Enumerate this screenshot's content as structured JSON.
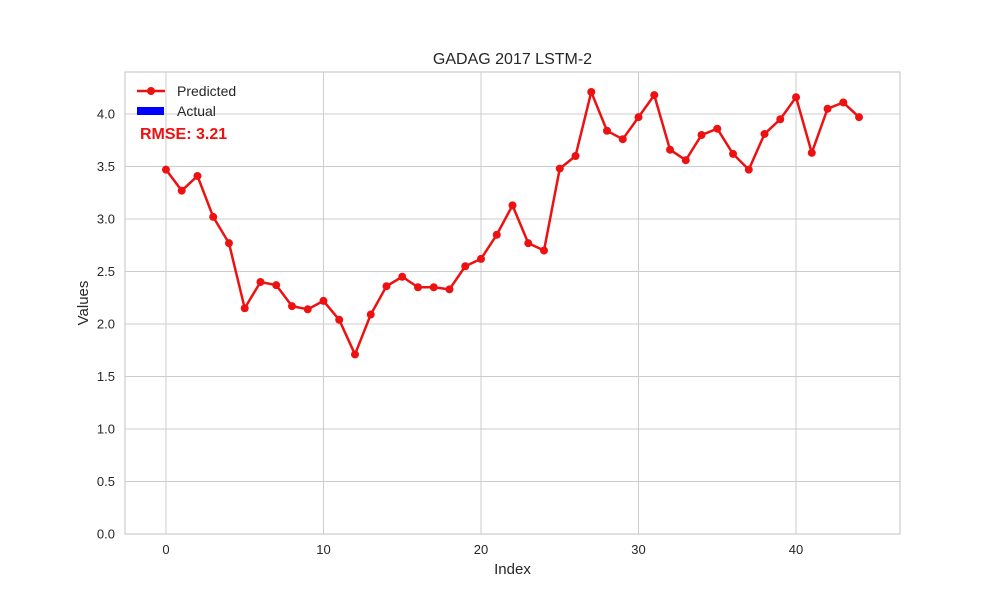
{
  "chart_data": {
    "type": "line",
    "title": "GADAG 2017 LSTM-2",
    "xlabel": "Index",
    "ylabel": "Values",
    "xlim": [
      -2.6,
      46.6
    ],
    "ylim": [
      0,
      4.4
    ],
    "xticks": [
      0,
      10,
      20,
      30,
      40
    ],
    "yticks": [
      0.0,
      0.5,
      1.0,
      1.5,
      2.0,
      2.5,
      3.0,
      3.5,
      4.0
    ],
    "ytick_labels": [
      "0.0",
      "0.5",
      "1.0",
      "1.5",
      "2.0",
      "2.5",
      "3.0",
      "3.5",
      "4.0"
    ],
    "grid": true,
    "legend_position": "top-left",
    "series": [
      {
        "name": "Predicted",
        "color": "#ee1111",
        "marker": "circle",
        "x": [
          0,
          1,
          2,
          3,
          4,
          5,
          6,
          7,
          8,
          9,
          10,
          11,
          12,
          13,
          14,
          15,
          16,
          17,
          18,
          19,
          20,
          21,
          22,
          23,
          24,
          25,
          26,
          27,
          28,
          29,
          30,
          31,
          32,
          33,
          34,
          35,
          36,
          37,
          38,
          39,
          40,
          41,
          42,
          43,
          44
        ],
        "values": [
          3.47,
          3.27,
          3.41,
          3.02,
          2.77,
          2.15,
          2.4,
          2.37,
          2.17,
          2.14,
          2.22,
          2.04,
          1.71,
          2.09,
          2.36,
          2.45,
          2.35,
          2.35,
          2.33,
          2.55,
          2.62,
          2.85,
          3.13,
          2.77,
          2.7,
          3.48,
          3.6,
          4.21,
          3.84,
          3.76,
          3.97,
          4.18,
          3.66,
          3.56,
          3.8,
          3.86,
          3.62,
          3.47,
          3.81,
          3.95,
          4.16,
          3.63,
          4.05,
          4.11,
          3.97
        ]
      },
      {
        "name": "Actual",
        "color": "#0000ff",
        "type": "bar",
        "values": []
      }
    ],
    "annotation": {
      "text": "RMSE: 3.21",
      "color": "#ee1111"
    }
  }
}
